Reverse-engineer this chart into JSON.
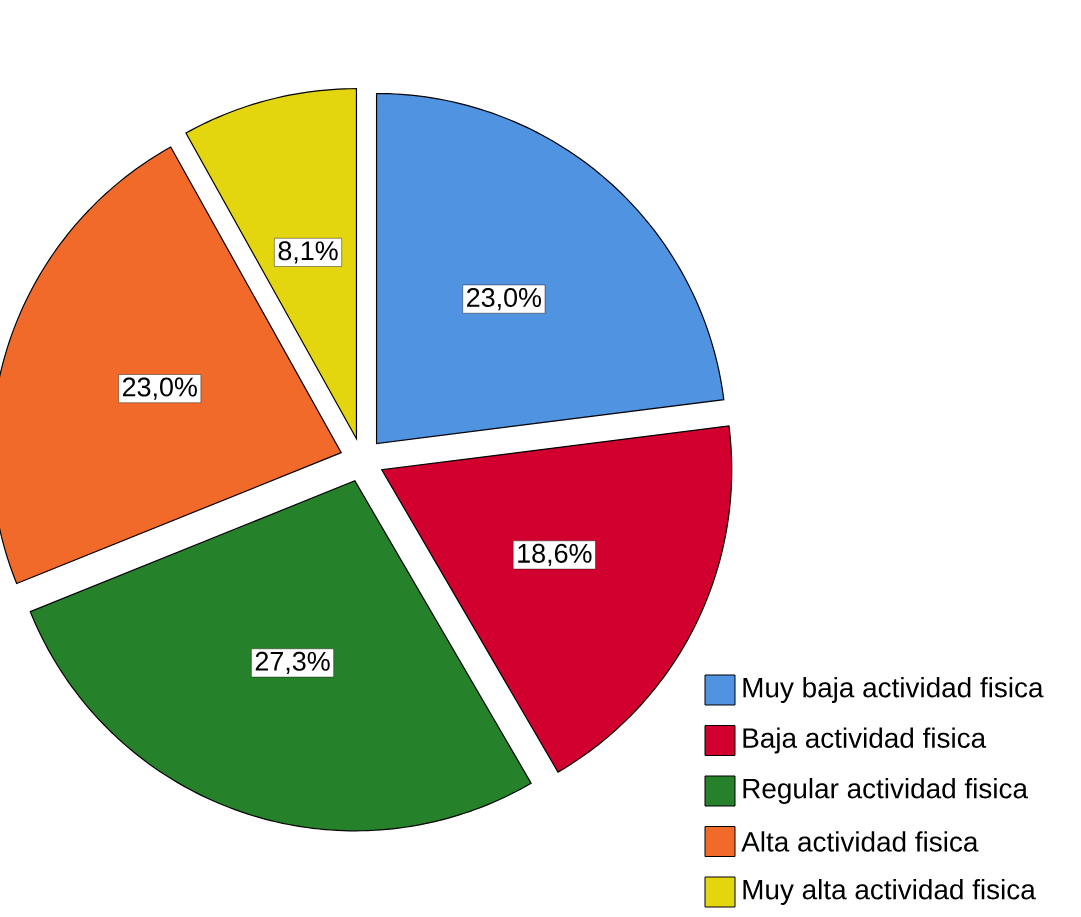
{
  "chart_data": {
    "type": "pie",
    "categories": [
      "Muy baja actividad fisica",
      "Baja actividad fisica",
      "Regular actividad fisica",
      "Alta actividad fisica",
      "Muy alta actividad fisica"
    ],
    "values": [
      23.0,
      18.6,
      27.3,
      23.0,
      8.1
    ],
    "colors": [
      "#5093e1",
      "#d2002e",
      "#26822a",
      "#f26a2a",
      "#e3d50e"
    ],
    "value_labels": [
      "23,0%",
      "18,6%",
      "27,3%",
      "23,0%",
      "8,1%"
    ],
    "legend": "bottom right"
  }
}
